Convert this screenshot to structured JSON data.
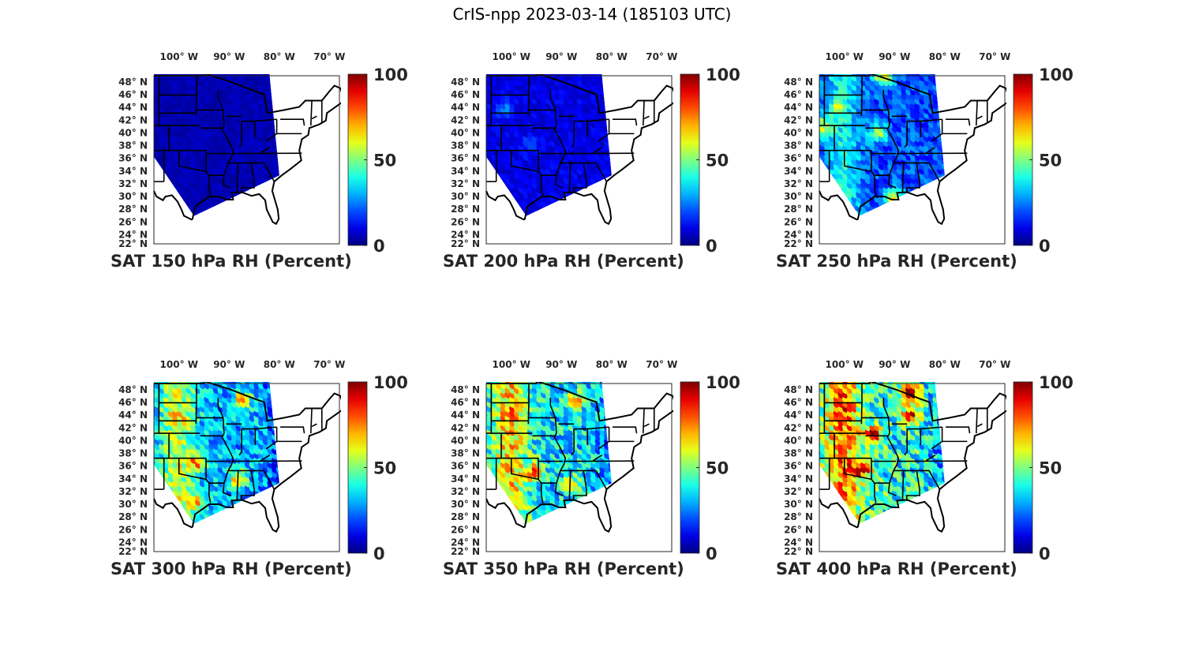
{
  "suptitle": "CrIS-npp 2023-03-14 (185103 UTC)",
  "colormap": "jet",
  "colors": {
    "axis": "#262626",
    "border": "#000000",
    "jet_stops": [
      "#00008f",
      "#0000ff",
      "#00ffff",
      "#ffff00",
      "#ff0000",
      "#800000"
    ]
  },
  "chart_data": [
    {
      "type": "heatmap",
      "title": "SAT 150 hPa RH (Percent)",
      "variable": "Relative Humidity",
      "pressure_hPa": 150,
      "units": "Percent",
      "x_ticks": [
        "100° W",
        "90° W",
        "80° W",
        "70° W"
      ],
      "y_ticks": [
        "48° N",
        "46° N",
        "44° N",
        "42° N",
        "40° N",
        "38° N",
        "36° N",
        "34° N",
        "32° N",
        "30° N",
        "28° N",
        "26° N",
        "24° N",
        "22° N"
      ],
      "xlim_deg_lon": [
        -105,
        -68
      ],
      "ylim_deg_lat": [
        22,
        49
      ],
      "colorbar": {
        "range": [
          0,
          100
        ],
        "ticks": [
          "0",
          "50",
          "100"
        ]
      },
      "summary": {
        "typical_value": 5,
        "max_value": 15,
        "pattern": "nearly uniform very dry (dark blue) across whole swath"
      },
      "features": []
    },
    {
      "type": "heatmap",
      "title": "SAT 200 hPa RH (Percent)",
      "variable": "Relative Humidity",
      "pressure_hPa": 200,
      "units": "Percent",
      "x_ticks": [
        "100° W",
        "90° W",
        "80° W",
        "70° W"
      ],
      "y_ticks": [
        "48° N",
        "46° N",
        "44° N",
        "42° N",
        "40° N",
        "38° N",
        "36° N",
        "34° N",
        "32° N",
        "30° N",
        "28° N",
        "26° N",
        "24° N",
        "22° N"
      ],
      "xlim_deg_lon": [
        -105,
        -68
      ],
      "ylim_deg_lat": [
        22,
        49
      ],
      "colorbar": {
        "range": [
          0,
          100
        ],
        "ticks": [
          "0",
          "50",
          "100"
        ]
      },
      "summary": {
        "typical_value": 10,
        "max_value": 30,
        "pattern": "mostly dry, slightly moister streaks in west"
      },
      "features": [
        {
          "lon": -101,
          "lat": 44,
          "value": 25
        },
        {
          "lon": -96,
          "lat": 38,
          "value": 22
        }
      ]
    },
    {
      "type": "heatmap",
      "title": "SAT 250 hPa RH (Percent)",
      "variable": "Relative Humidity",
      "pressure_hPa": 250,
      "units": "Percent",
      "x_ticks": [
        "100° W",
        "90° W",
        "80° W",
        "70° W"
      ],
      "y_ticks": [
        "48° N",
        "46° N",
        "44° N",
        "42° N",
        "40° N",
        "38° N",
        "36° N",
        "34° N",
        "32° N",
        "30° N",
        "28° N",
        "26° N",
        "24° N",
        "22° N"
      ],
      "xlim_deg_lon": [
        -105,
        -68
      ],
      "ylim_deg_lat": [
        22,
        49
      ],
      "colorbar": {
        "range": [
          0,
          100
        ],
        "ticks": [
          "0",
          "50",
          "100"
        ]
      },
      "summary": {
        "typical_value": 20,
        "max_value": 70,
        "pattern": "moister band over Plains, moist pockets near Gulf coast and northern MN"
      },
      "features": [
        {
          "lon": -101,
          "lat": 44,
          "value": 40
        },
        {
          "lon": -92,
          "lat": 49,
          "value": 65
        },
        {
          "lon": -90,
          "lat": 29.5,
          "value": 65
        },
        {
          "lon": -93,
          "lat": 40,
          "value": 55
        },
        {
          "lon": -104,
          "lat": 41,
          "value": 55
        }
      ]
    },
    {
      "type": "heatmap",
      "title": "SAT 300 hPa RH (Percent)",
      "variable": "Relative Humidity",
      "pressure_hPa": 300,
      "units": "Percent",
      "x_ticks": [
        "100° W",
        "90° W",
        "80° W",
        "70° W"
      ],
      "y_ticks": [
        "48° N",
        "46° N",
        "44° N",
        "42° N",
        "40° N",
        "38° N",
        "36° N",
        "34° N",
        "32° N",
        "30° N",
        "28° N",
        "26° N",
        "24° N",
        "22° N"
      ],
      "xlim_deg_lon": [
        -105,
        -68
      ],
      "ylim_deg_lat": [
        22,
        49
      ],
      "colorbar": {
        "range": [
          0,
          100
        ],
        "ticks": [
          "0",
          "50",
          "100"
        ]
      },
      "summary": {
        "typical_value": 30,
        "max_value": 75,
        "pattern": "moist streaks over central US, orange patches over OK/AR, MS, northern MI"
      },
      "features": [
        {
          "lon": -96,
          "lat": 36.5,
          "value": 70
        },
        {
          "lon": -88,
          "lat": 34,
          "value": 70
        },
        {
          "lon": -87,
          "lat": 46.5,
          "value": 70
        },
        {
          "lon": -100,
          "lat": 44,
          "value": 45
        },
        {
          "lon": -96,
          "lat": 30,
          "value": 60
        }
      ]
    },
    {
      "type": "heatmap",
      "title": "SAT 350 hPa RH (Percent)",
      "variable": "Relative Humidity",
      "pressure_hPa": 350,
      "units": "Percent",
      "x_ticks": [
        "100° W",
        "90° W",
        "80° W",
        "70° W"
      ],
      "y_ticks": [
        "48° N",
        "46° N",
        "44° N",
        "42° N",
        "40° N",
        "38° N",
        "36° N",
        "34° N",
        "32° N",
        "30° N",
        "28° N",
        "26° N",
        "24° N",
        "22° N"
      ],
      "xlim_deg_lon": [
        -105,
        -68
      ],
      "ylim_deg_lat": [
        22,
        49
      ],
      "colorbar": {
        "range": [
          0,
          100
        ],
        "ticks": [
          "0",
          "50",
          "100"
        ]
      },
      "summary": {
        "typical_value": 35,
        "max_value": 80,
        "pattern": "moist bands over Plains and Upper Midwest, red/orange over OK/AR"
      },
      "features": [
        {
          "lon": -95,
          "lat": 35,
          "value": 80
        },
        {
          "lon": -87,
          "lat": 46.5,
          "value": 70
        },
        {
          "lon": -100,
          "lat": 44,
          "value": 45
        },
        {
          "lon": -88,
          "lat": 33,
          "value": 60
        }
      ]
    },
    {
      "type": "heatmap",
      "title": "SAT 400 hPa RH (Percent)",
      "variable": "Relative Humidity",
      "pressure_hPa": 400,
      "units": "Percent",
      "x_ticks": [
        "100° W",
        "90° W",
        "80° W",
        "70° W"
      ],
      "y_ticks": [
        "48° N",
        "46° N",
        "44° N",
        "42° N",
        "40° N",
        "38° N",
        "36° N",
        "34° N",
        "32° N",
        "30° N",
        "28° N",
        "26° N",
        "24° N",
        "22° N"
      ],
      "xlim_deg_lon": [
        -105,
        -68
      ],
      "ylim_deg_lat": [
        22,
        49
      ],
      "colorbar": {
        "range": [
          0,
          100
        ],
        "ticks": [
          "0",
          "50",
          "100"
        ]
      },
      "summary": {
        "typical_value": 40,
        "max_value": 100,
        "pattern": "saturated (dark red) over Lake Superior/Michigan and Iowa/Missouri, moist over Texas/OK"
      },
      "features": [
        {
          "lon": -86.5,
          "lat": 47.5,
          "value": 100
        },
        {
          "lon": -86.5,
          "lat": 44,
          "value": 85
        },
        {
          "lon": -94,
          "lat": 41,
          "value": 90
        },
        {
          "lon": -96,
          "lat": 35.5,
          "value": 90
        },
        {
          "lon": -100,
          "lat": 44,
          "value": 50
        }
      ]
    }
  ]
}
